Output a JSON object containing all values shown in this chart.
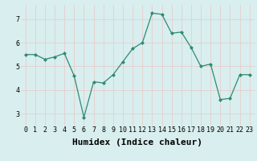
{
  "xlabel": "Humidex (Indice chaleur)",
  "x": [
    0,
    1,
    2,
    3,
    4,
    5,
    6,
    7,
    8,
    9,
    10,
    11,
    12,
    13,
    14,
    15,
    16,
    17,
    18,
    19,
    20,
    21,
    22,
    23
  ],
  "y": [
    5.5,
    5.5,
    5.3,
    5.4,
    5.55,
    4.6,
    2.85,
    4.35,
    4.3,
    4.65,
    5.2,
    5.75,
    6.0,
    7.25,
    7.2,
    6.4,
    6.45,
    5.8,
    5.0,
    5.1,
    3.6,
    3.65,
    4.65,
    4.65
  ],
  "ylim": [
    2.5,
    7.6
  ],
  "xlim": [
    -0.5,
    23.5
  ],
  "yticks": [
    3,
    4,
    5,
    6,
    7
  ],
  "xticks": [
    0,
    1,
    2,
    3,
    4,
    5,
    6,
    7,
    8,
    9,
    10,
    11,
    12,
    13,
    14,
    15,
    16,
    17,
    18,
    19,
    20,
    21,
    22,
    23
  ],
  "line_color": "#2d8b72",
  "marker": "D",
  "marker_size": 2.0,
  "bg_color": "#d9eeee",
  "grid_color_major": "#e8c8c8",
  "grid_color_minor": "#e8c8c8",
  "axis_bg": "#d9eeee",
  "tick_label_fontsize": 6.0,
  "xlabel_fontsize": 8.0,
  "linewidth": 0.9
}
